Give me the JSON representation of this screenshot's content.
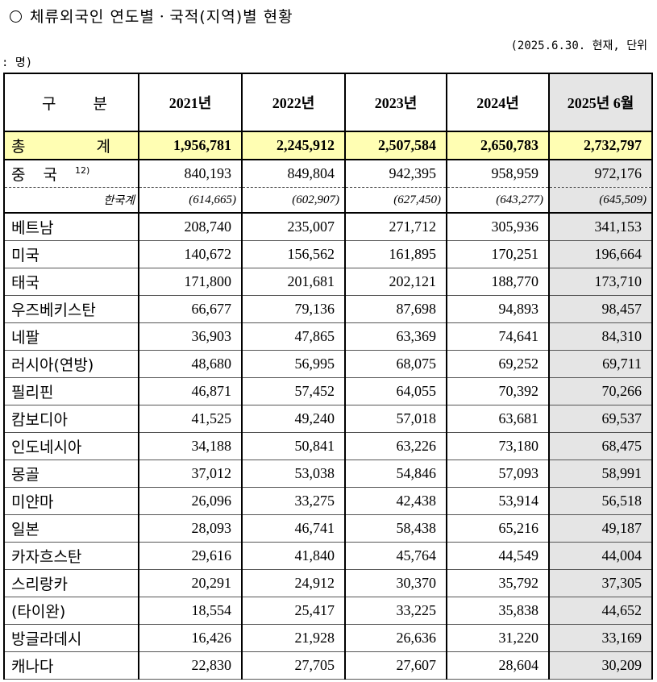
{
  "title": "체류외국인 연도별ㆍ국적(지역)별 현황",
  "unit_line1": "(2025.6.30. 현재, 단위",
  "unit_line2": ": 명)",
  "headers": {
    "gubun": "구분",
    "years": [
      "2021년",
      "2022년",
      "2023년",
      "2024년",
      "2025년 6월"
    ]
  },
  "total": {
    "label": "총계",
    "values": [
      "1,956,781",
      "2,245,912",
      "2,507,584",
      "2,650,783",
      "2,732,797"
    ]
  },
  "china": {
    "label": "중국",
    "sup": "12)",
    "values": [
      "840,193",
      "849,804",
      "942,395",
      "958,959",
      "972,176"
    ]
  },
  "korean": {
    "label": "한국계",
    "values": [
      "(614,665)",
      "(602,907)",
      "(627,450)",
      "(643,277)",
      "(645,509)"
    ]
  },
  "rows": [
    {
      "label": "베트남",
      "values": [
        "208,740",
        "235,007",
        "271,712",
        "305,936",
        "341,153"
      ]
    },
    {
      "label": "미국",
      "values": [
        "140,672",
        "156,562",
        "161,895",
        "170,251",
        "196,664"
      ]
    },
    {
      "label": "태국",
      "values": [
        "171,800",
        "201,681",
        "202,121",
        "188,770",
        "173,710"
      ]
    },
    {
      "label": "우즈베키스탄",
      "values": [
        "66,677",
        "79,136",
        "87,698",
        "94,893",
        "98,457"
      ]
    },
    {
      "label": "네팔",
      "values": [
        "36,903",
        "47,865",
        "63,369",
        "74,641",
        "84,310"
      ]
    },
    {
      "label": "러시아(연방)",
      "values": [
        "48,680",
        "56,995",
        "68,075",
        "69,252",
        "69,711"
      ]
    },
    {
      "label": "필리핀",
      "values": [
        "46,871",
        "57,452",
        "64,055",
        "70,392",
        "70,266"
      ]
    },
    {
      "label": "캄보디아",
      "values": [
        "41,525",
        "49,240",
        "57,018",
        "63,681",
        "69,537"
      ]
    },
    {
      "label": "인도네시아",
      "values": [
        "34,188",
        "50,841",
        "63,226",
        "73,180",
        "68,475"
      ]
    },
    {
      "label": "몽골",
      "values": [
        "37,012",
        "53,038",
        "54,846",
        "57,093",
        "58,991"
      ]
    },
    {
      "label": "미얀마",
      "values": [
        "26,096",
        "33,275",
        "42,438",
        "53,914",
        "56,518"
      ]
    },
    {
      "label": "일본",
      "values": [
        "28,093",
        "46,741",
        "58,438",
        "65,216",
        "49,187"
      ]
    },
    {
      "label": "카자흐스탄",
      "values": [
        "29,616",
        "41,840",
        "45,764",
        "44,549",
        "44,004"
      ]
    },
    {
      "label": "스리랑카",
      "values": [
        "20,291",
        "24,912",
        "30,370",
        "35,792",
        "37,305"
      ]
    },
    {
      "label": "(타이완)",
      "values": [
        "18,554",
        "25,417",
        "33,225",
        "35,838",
        "44,652"
      ]
    },
    {
      "label": "방글라데시",
      "values": [
        "16,426",
        "21,928",
        "26,636",
        "31,220",
        "33,169"
      ]
    },
    {
      "label": "캐나다",
      "values": [
        "22,830",
        "27,705",
        "27,607",
        "28,604",
        "30,209"
      ]
    }
  ]
}
